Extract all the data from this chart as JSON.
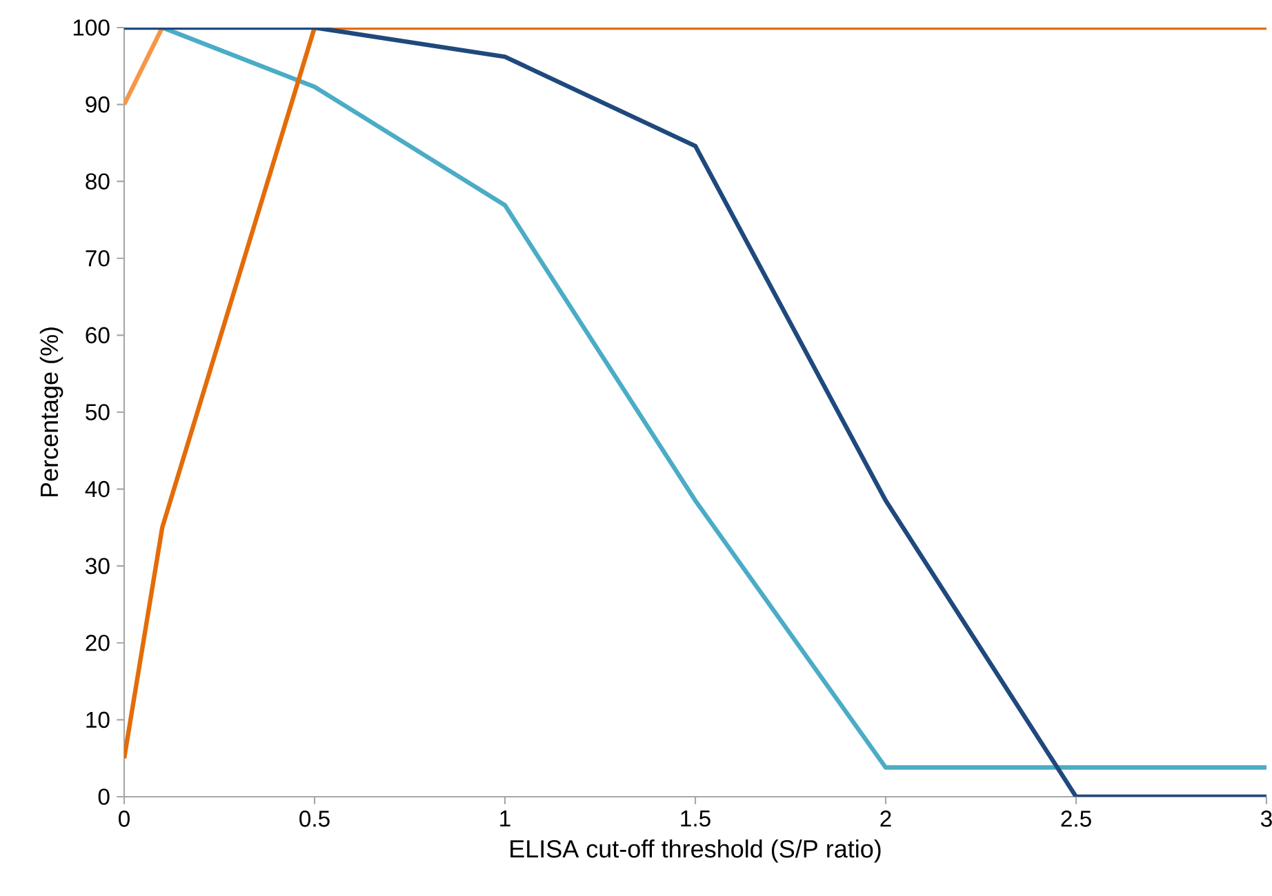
{
  "chart_data": {
    "type": "line",
    "xlabel": "ELISA cut-off threshold (S/P ratio)",
    "ylabel": "Percentage (%)",
    "x": [
      0,
      0.1,
      0.5,
      1,
      1.5,
      2,
      2.5,
      3
    ],
    "series": [
      {
        "color": "#f79646",
        "values": [
          90,
          100,
          null,
          null,
          null,
          null,
          null,
          null
        ]
      },
      {
        "color": "#4bacc6",
        "values": [
          null,
          100,
          92.3,
          76.9,
          38.5,
          3.8,
          3.8,
          3.8
        ]
      },
      {
        "color": "#e36c09",
        "values": [
          5,
          35,
          100,
          100,
          100,
          100,
          100,
          100
        ]
      },
      {
        "color": "#1f497d",
        "values": [
          100,
          100,
          100,
          96.2,
          84.6,
          38.5,
          0,
          0
        ]
      }
    ],
    "xlim": [
      0,
      3
    ],
    "ylim": [
      0,
      100
    ],
    "xticks": [
      0,
      0.5,
      1,
      1.5,
      2,
      2.5,
      3
    ],
    "yticks": [
      0,
      10,
      20,
      30,
      40,
      50,
      60,
      70,
      80,
      90,
      100
    ],
    "marker": "none",
    "line_style": "solid"
  }
}
